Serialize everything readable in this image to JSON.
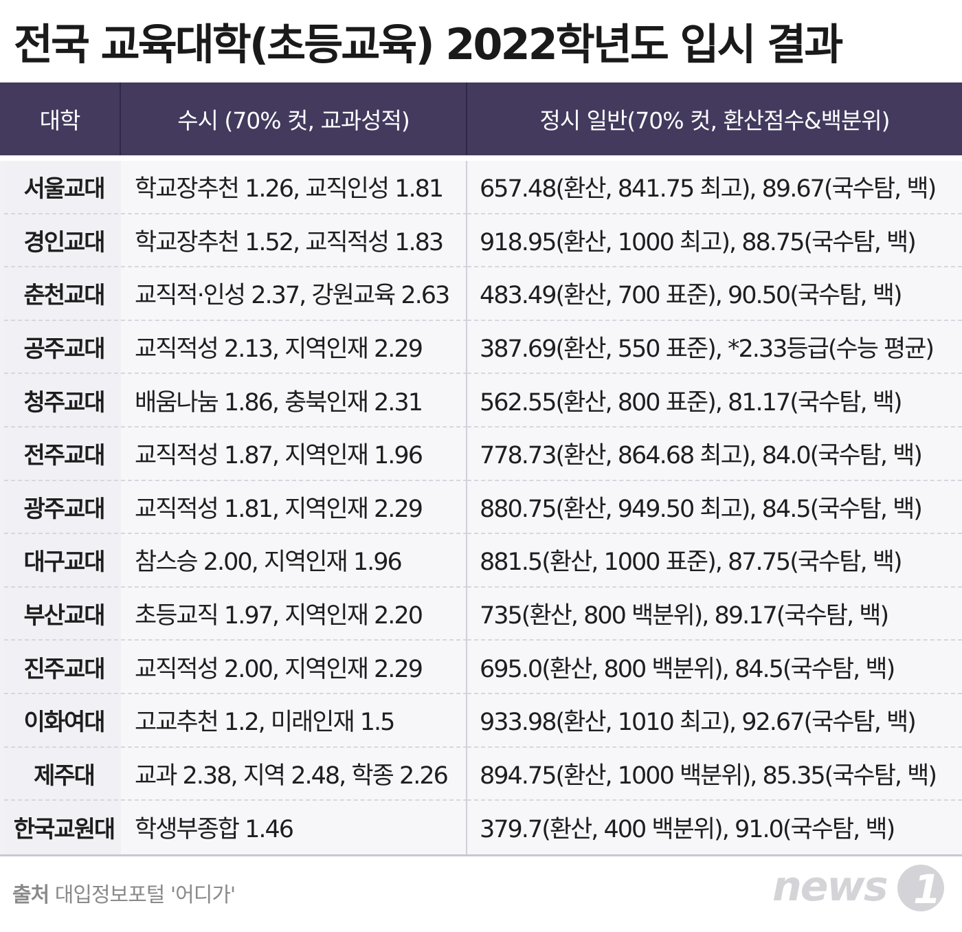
{
  "title": "전국 교육대학(초등교육) 2022학년도 입시 결과",
  "table": {
    "headers": {
      "univ": "대학",
      "susi": "수시 (70% 컷, 교과성적)",
      "jeongsi": "정시 일반(70% 컷, 환산점수&백분위)"
    },
    "rows": [
      {
        "univ": "서울교대",
        "susi": "학교장추천 1.26, 교직인성 1.81",
        "jeongsi": "657.48(환산, 841.75 최고), 89.67(국수탐, 백)"
      },
      {
        "univ": "경인교대",
        "susi": "학교장추천 1.52, 교직적성 1.83",
        "jeongsi": "918.95(환산, 1000 최고), 88.75(국수탐, 백)"
      },
      {
        "univ": "춘천교대",
        "susi": "교직적·인성 2.37, 강원교육 2.63",
        "jeongsi": "483.49(환산, 700 표준), 90.50(국수탐, 백)"
      },
      {
        "univ": "공주교대",
        "susi": "교직적성 2.13, 지역인재 2.29",
        "jeongsi": "387.69(환산, 550 표준), *2.33등급(수능 평균)"
      },
      {
        "univ": "청주교대",
        "susi": "배움나눔 1.86, 충북인재 2.31",
        "jeongsi": "562.55(환산, 800 표준), 81.17(국수탐, 백)"
      },
      {
        "univ": "전주교대",
        "susi": "교직적성 1.87, 지역인재 1.96",
        "jeongsi": "778.73(환산, 864.68 최고), 84.0(국수탐, 백)"
      },
      {
        "univ": "광주교대",
        "susi": "교직적성 1.81, 지역인재 2.29",
        "jeongsi": "880.75(환산, 949.50 최고), 84.5(국수탐, 백)"
      },
      {
        "univ": "대구교대",
        "susi": "참스승 2.00, 지역인재 1.96",
        "jeongsi": "881.5(환산, 1000 표준), 87.75(국수탐, 백)"
      },
      {
        "univ": "부산교대",
        "susi": "초등교직 1.97, 지역인재 2.20",
        "jeongsi": "735(환산, 800 백분위), 89.17(국수탐, 백)"
      },
      {
        "univ": "진주교대",
        "susi": "교직적성 2.00, 지역인재 2.29",
        "jeongsi": "695.0(환산, 800 백분위), 84.5(국수탐, 백)"
      },
      {
        "univ": "이화여대",
        "susi": "고교추천 1.2, 미래인재 1.5",
        "jeongsi": "933.98(환산, 1010 최고), 92.67(국수탐, 백)"
      },
      {
        "univ": "제주대",
        "susi": "교과 2.38, 지역 2.48, 학종 2.26",
        "jeongsi": "894.75(환산, 1000 백분위), 85.35(국수탐, 백)"
      },
      {
        "univ": "한국교원대",
        "susi": "학생부종합 1.46",
        "jeongsi": "379.7(환산, 400 백분위), 91.0(국수탐, 백)"
      }
    ]
  },
  "footer": {
    "source_label": "출처",
    "source_text": "대입정보포털 '어디가'"
  },
  "logo": {
    "text": "news",
    "mark": "1",
    "color": "#d4d4d8"
  }
}
